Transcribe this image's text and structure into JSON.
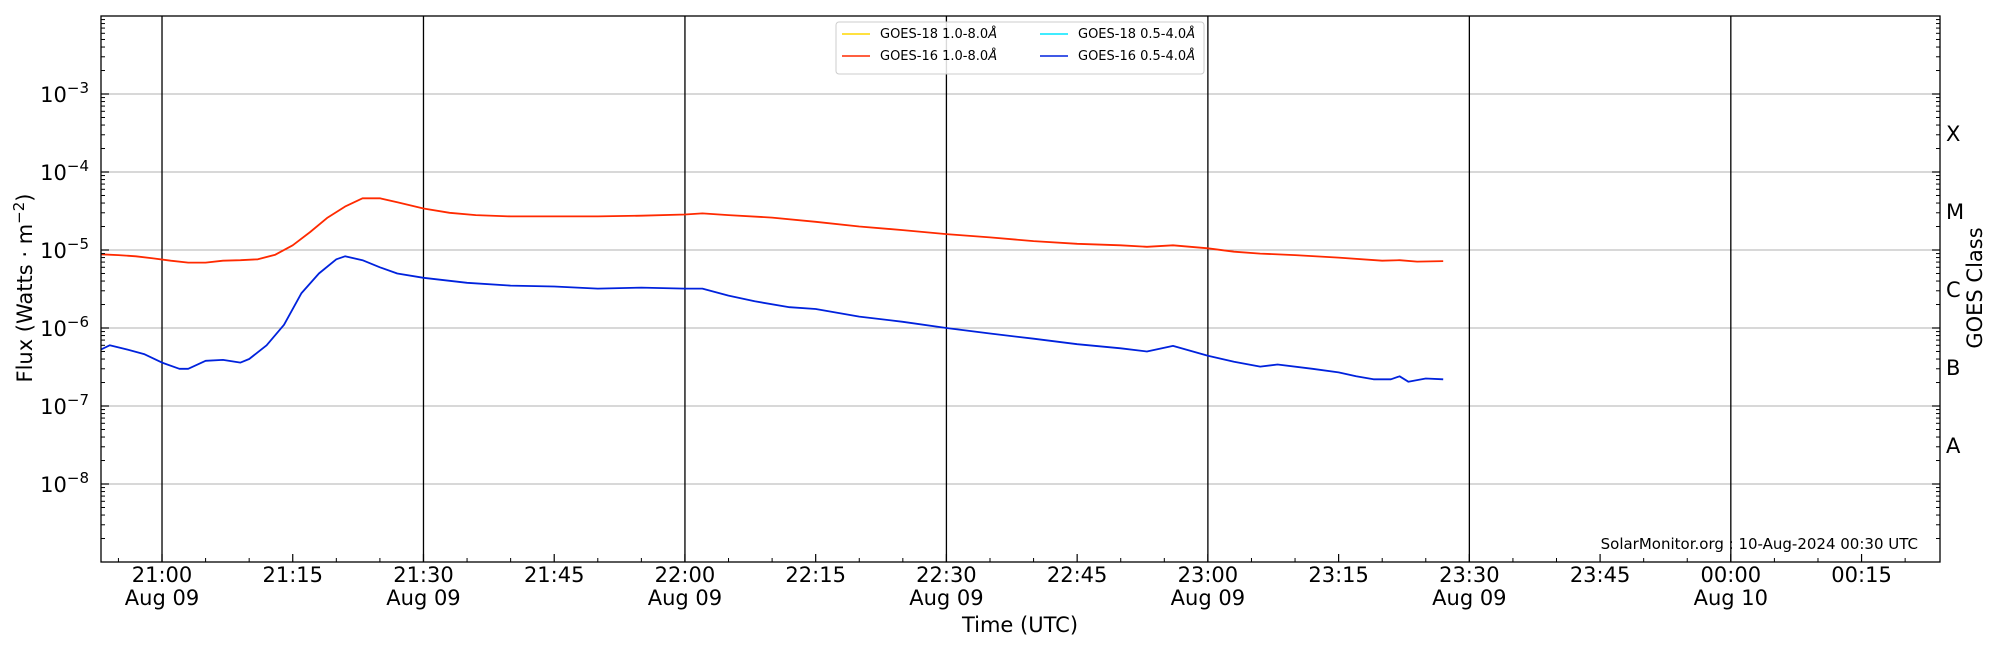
{
  "chart_data": {
    "type": "line",
    "title": "",
    "xlabel": "Time (UTC)",
    "ylabel": "Flux (Watts · m",
    "ylabel_exponent": "−2",
    "ylabel_close": ")",
    "y2label": "GOES Class",
    "yscale": "log",
    "ylim": [
      1e-09,
      0.01
    ],
    "xlim": [
      "2024-08-09 20:53",
      "2024-08-10 00:24"
    ],
    "y_ticks": [
      {
        "value": 1e-08,
        "mantissa": "10",
        "exp": "−8"
      },
      {
        "value": 1e-07,
        "mantissa": "10",
        "exp": "−7"
      },
      {
        "value": 1e-06,
        "mantissa": "10",
        "exp": "−6"
      },
      {
        "value": 1e-05,
        "mantissa": "10",
        "exp": "−5"
      },
      {
        "value": 0.0001,
        "mantissa": "10",
        "exp": "−4"
      },
      {
        "value": 0.001,
        "mantissa": "10",
        "exp": "−3"
      }
    ],
    "goes_classes": [
      {
        "label": "A",
        "value": 3.16e-08
      },
      {
        "label": "B",
        "value": 3.16e-07
      },
      {
        "label": "C",
        "value": 3.16e-06
      },
      {
        "label": "M",
        "value": 3.16e-05
      },
      {
        "label": "X",
        "value": 0.000316
      }
    ],
    "x_ticks": [
      {
        "time": "2024-08-09 21:00",
        "label": "21:00",
        "date": "Aug 09",
        "major": true
      },
      {
        "time": "2024-08-09 21:15",
        "label": "21:15",
        "date": "",
        "major": false
      },
      {
        "time": "2024-08-09 21:30",
        "label": "21:30",
        "date": "Aug 09",
        "major": true
      },
      {
        "time": "2024-08-09 21:45",
        "label": "21:45",
        "date": "",
        "major": false
      },
      {
        "time": "2024-08-09 22:00",
        "label": "22:00",
        "date": "Aug 09",
        "major": true
      },
      {
        "time": "2024-08-09 22:15",
        "label": "22:15",
        "date": "",
        "major": false
      },
      {
        "time": "2024-08-09 22:30",
        "label": "22:30",
        "date": "Aug 09",
        "major": true
      },
      {
        "time": "2024-08-09 22:45",
        "label": "22:45",
        "date": "",
        "major": false
      },
      {
        "time": "2024-08-09 23:00",
        "label": "23:00",
        "date": "Aug 09",
        "major": true
      },
      {
        "time": "2024-08-09 23:15",
        "label": "23:15",
        "date": "",
        "major": false
      },
      {
        "time": "2024-08-09 23:30",
        "label": "23:30",
        "date": "Aug 09",
        "major": true
      },
      {
        "time": "2024-08-09 23:45",
        "label": "23:45",
        "date": "",
        "major": false
      },
      {
        "time": "2024-08-10 00:00",
        "label": "00:00",
        "date": "Aug 10",
        "major": true
      },
      {
        "time": "2024-08-10 00:15",
        "label": "00:15",
        "date": "",
        "major": false
      }
    ],
    "legend": {
      "placement": "top-center",
      "columns": 2,
      "entries": [
        {
          "name": "GOES-18 1.0-8.0",
          "color": "#ffd700"
        },
        {
          "name": "GOES-16 1.0-8.0",
          "color": "#ff2a00"
        },
        {
          "name": "GOES-18 0.5-4.0",
          "color": "#00e5ff"
        },
        {
          "name": "GOES-16 0.5-4.0",
          "color": "#0022dd"
        }
      ],
      "unit_symbol": "Å"
    },
    "grid": {
      "horizontal": true,
      "vertical_major": true
    },
    "credit": "SolarMonitor.org : 10-Aug-2024 00:30 UTC",
    "series": [
      {
        "name": "GOES-16 1.0-8.0",
        "color": "#ff2a00",
        "points": [
          [
            "2024-08-09 20:53",
            8.8e-06
          ],
          [
            "2024-08-09 20:55",
            8.6e-06
          ],
          [
            "2024-08-09 20:57",
            8.3e-06
          ],
          [
            "2024-08-09 20:59",
            7.8e-06
          ],
          [
            "2024-08-09 21:01",
            7.3e-06
          ],
          [
            "2024-08-09 21:03",
            6.9e-06
          ],
          [
            "2024-08-09 21:05",
            6.9e-06
          ],
          [
            "2024-08-09 21:07",
            7.3e-06
          ],
          [
            "2024-08-09 21:09",
            7.4e-06
          ],
          [
            "2024-08-09 21:11",
            7.6e-06
          ],
          [
            "2024-08-09 21:13",
            8.7e-06
          ],
          [
            "2024-08-09 21:15",
            1.15e-05
          ],
          [
            "2024-08-09 21:17",
            1.7e-05
          ],
          [
            "2024-08-09 21:19",
            2.6e-05
          ],
          [
            "2024-08-09 21:21",
            3.6e-05
          ],
          [
            "2024-08-09 21:23",
            4.6e-05
          ],
          [
            "2024-08-09 21:25",
            4.6e-05
          ],
          [
            "2024-08-09 21:27",
            4.1e-05
          ],
          [
            "2024-08-09 21:30",
            3.4e-05
          ],
          [
            "2024-08-09 21:33",
            3e-05
          ],
          [
            "2024-08-09 21:36",
            2.8e-05
          ],
          [
            "2024-08-09 21:40",
            2.7e-05
          ],
          [
            "2024-08-09 21:45",
            2.7e-05
          ],
          [
            "2024-08-09 21:50",
            2.7e-05
          ],
          [
            "2024-08-09 21:55",
            2.75e-05
          ],
          [
            "2024-08-09 22:00",
            2.85e-05
          ],
          [
            "2024-08-09 22:02",
            2.95e-05
          ],
          [
            "2024-08-09 22:05",
            2.8e-05
          ],
          [
            "2024-08-09 22:10",
            2.6e-05
          ],
          [
            "2024-08-09 22:15",
            2.3e-05
          ],
          [
            "2024-08-09 22:20",
            2e-05
          ],
          [
            "2024-08-09 22:25",
            1.8e-05
          ],
          [
            "2024-08-09 22:30",
            1.6e-05
          ],
          [
            "2024-08-09 22:35",
            1.45e-05
          ],
          [
            "2024-08-09 22:40",
            1.3e-05
          ],
          [
            "2024-08-09 22:45",
            1.2e-05
          ],
          [
            "2024-08-09 22:50",
            1.15e-05
          ],
          [
            "2024-08-09 22:53",
            1.1e-05
          ],
          [
            "2024-08-09 22:56",
            1.15e-05
          ],
          [
            "2024-08-09 23:00",
            1.05e-05
          ],
          [
            "2024-08-09 23:03",
            9.5e-06
          ],
          [
            "2024-08-09 23:06",
            9e-06
          ],
          [
            "2024-08-09 23:10",
            8.6e-06
          ],
          [
            "2024-08-09 23:15",
            8e-06
          ],
          [
            "2024-08-09 23:20",
            7.3e-06
          ],
          [
            "2024-08-09 23:22",
            7.4e-06
          ],
          [
            "2024-08-09 23:24",
            7.1e-06
          ],
          [
            "2024-08-09 23:27",
            7.2e-06
          ]
        ]
      },
      {
        "name": "GOES-16 0.5-4.0",
        "color": "#0022dd",
        "points": [
          [
            "2024-08-09 20:53",
            5.3e-07
          ],
          [
            "2024-08-09 20:54",
            6e-07
          ],
          [
            "2024-08-09 20:56",
            5.3e-07
          ],
          [
            "2024-08-09 20:58",
            4.6e-07
          ],
          [
            "2024-08-09 21:00",
            3.6e-07
          ],
          [
            "2024-08-09 21:02",
            3e-07
          ],
          [
            "2024-08-09 21:03",
            3e-07
          ],
          [
            "2024-08-09 21:05",
            3.8e-07
          ],
          [
            "2024-08-09 21:07",
            3.9e-07
          ],
          [
            "2024-08-09 21:09",
            3.6e-07
          ],
          [
            "2024-08-09 21:10",
            4e-07
          ],
          [
            "2024-08-09 21:12",
            6e-07
          ],
          [
            "2024-08-09 21:14",
            1.1e-06
          ],
          [
            "2024-08-09 21:16",
            2.8e-06
          ],
          [
            "2024-08-09 21:18",
            5e-06
          ],
          [
            "2024-08-09 21:20",
            7.6e-06
          ],
          [
            "2024-08-09 21:21",
            8.3e-06
          ],
          [
            "2024-08-09 21:23",
            7.4e-06
          ],
          [
            "2024-08-09 21:25",
            6e-06
          ],
          [
            "2024-08-09 21:27",
            5e-06
          ],
          [
            "2024-08-09 21:30",
            4.4e-06
          ],
          [
            "2024-08-09 21:35",
            3.8e-06
          ],
          [
            "2024-08-09 21:40",
            3.5e-06
          ],
          [
            "2024-08-09 21:45",
            3.4e-06
          ],
          [
            "2024-08-09 21:50",
            3.2e-06
          ],
          [
            "2024-08-09 21:55",
            3.3e-06
          ],
          [
            "2024-08-09 22:00",
            3.2e-06
          ],
          [
            "2024-08-09 22:02",
            3.2e-06
          ],
          [
            "2024-08-09 22:05",
            2.6e-06
          ],
          [
            "2024-08-09 22:08",
            2.2e-06
          ],
          [
            "2024-08-09 22:12",
            1.85e-06
          ],
          [
            "2024-08-09 22:15",
            1.75e-06
          ],
          [
            "2024-08-09 22:20",
            1.4e-06
          ],
          [
            "2024-08-09 22:25",
            1.2e-06
          ],
          [
            "2024-08-09 22:30",
            1e-06
          ],
          [
            "2024-08-09 22:35",
            8.5e-07
          ],
          [
            "2024-08-09 22:40",
            7.3e-07
          ],
          [
            "2024-08-09 22:45",
            6.2e-07
          ],
          [
            "2024-08-09 22:50",
            5.5e-07
          ],
          [
            "2024-08-09 22:53",
            5e-07
          ],
          [
            "2024-08-09 22:56",
            5.9e-07
          ],
          [
            "2024-08-09 23:00",
            4.4e-07
          ],
          [
            "2024-08-09 23:03",
            3.7e-07
          ],
          [
            "2024-08-09 23:06",
            3.2e-07
          ],
          [
            "2024-08-09 23:08",
            3.4e-07
          ],
          [
            "2024-08-09 23:12",
            3e-07
          ],
          [
            "2024-08-09 23:15",
            2.7e-07
          ],
          [
            "2024-08-09 23:17",
            2.4e-07
          ],
          [
            "2024-08-09 23:19",
            2.2e-07
          ],
          [
            "2024-08-09 23:21",
            2.2e-07
          ],
          [
            "2024-08-09 23:22",
            2.4e-07
          ],
          [
            "2024-08-09 23:23",
            2.05e-07
          ],
          [
            "2024-08-09 23:25",
            2.25e-07
          ],
          [
            "2024-08-09 23:27",
            2.2e-07
          ]
        ]
      }
    ]
  }
}
